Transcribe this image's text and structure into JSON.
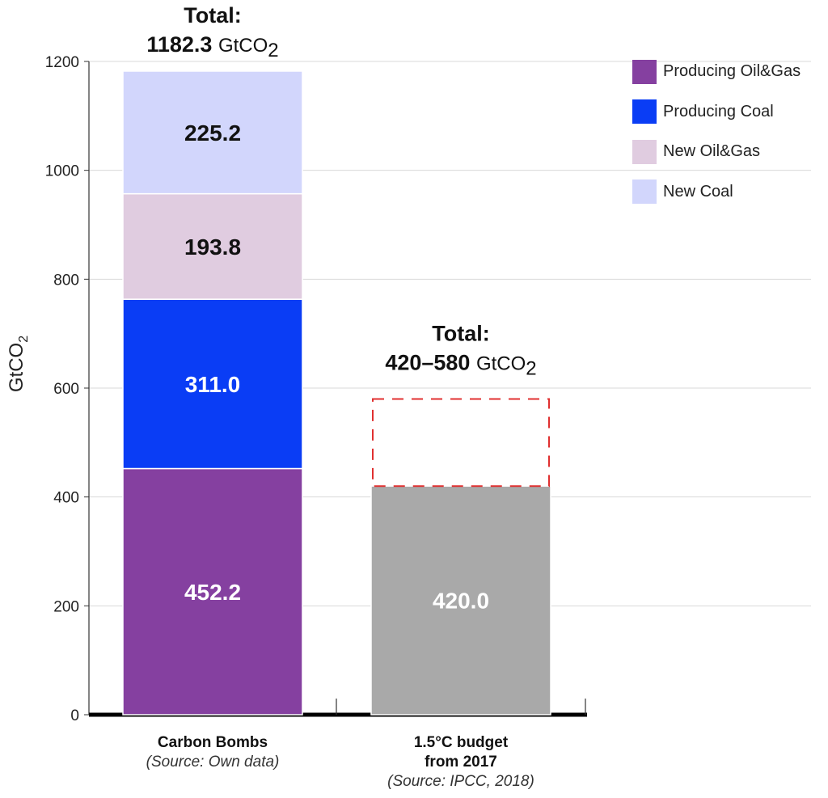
{
  "chart_data": {
    "type": "bar",
    "stacked": true,
    "ylabel": "GtCO",
    "ylabel_subscript": "2",
    "ylim": [
      0,
      1200
    ],
    "yticks": [
      "0",
      "200",
      "400",
      "600",
      "800",
      "1000",
      "1200"
    ],
    "grid": true,
    "legend_position": "top-right",
    "legend": [
      {
        "label": "Producing Oil&Gas",
        "color": "#8540a0"
      },
      {
        "label": "Producing Coal",
        "color": "#0a3df5"
      },
      {
        "label": "New Oil&Gas",
        "color": "#e0cce0"
      },
      {
        "label": "New Coal",
        "color": "#d2d6fc"
      }
    ],
    "bars": [
      {
        "category_line1": "Carbon Bombs",
        "category_source": "(Source: Own data)",
        "total_title": "Total:",
        "total_value": "1182.3",
        "total_unit": "GtCO",
        "total_unit_sub": "2",
        "segments": [
          {
            "name": "Producing Oil&Gas",
            "value": 452.2,
            "label": "452.2",
            "color": "#8540a0",
            "label_color": "#ffffff"
          },
          {
            "name": "Producing Coal",
            "value": 311.0,
            "label": "311.0",
            "color": "#0a3df5",
            "label_color": "#ffffff"
          },
          {
            "name": "New Oil&Gas",
            "value": 193.8,
            "label": "193.8",
            "color": "#e0cce0",
            "label_color": "#111111"
          },
          {
            "name": "New Coal",
            "value": 225.2,
            "label": "225.2",
            "color": "#d2d6fc",
            "label_color": "#111111"
          }
        ]
      },
      {
        "category_line1": "1.5°C budget",
        "category_line2": "from 2017",
        "category_source": "(Source: IPCC, 2018)",
        "total_title": "Total:",
        "total_value": "420–580",
        "total_unit": "GtCO",
        "total_unit_sub": "2",
        "segments": [
          {
            "name": "1.5°C budget",
            "value": 420.0,
            "label": "420.0",
            "color": "#a9a9a9",
            "label_color": "#ffffff"
          }
        ],
        "range_upper": 580,
        "range_color": "#e03030"
      }
    ]
  }
}
